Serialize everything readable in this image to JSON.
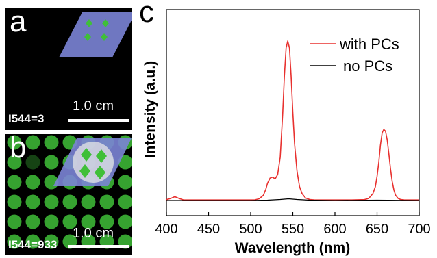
{
  "panel_a": {
    "letter": "a",
    "intensity_label": "I544=3",
    "scale_label": "1.0 cm"
  },
  "panel_b": {
    "letter": "b",
    "intensity_label": "I544=933",
    "scale_label": "1.0 cm"
  },
  "colors": {
    "with_pcs": "#e8312f",
    "no_pcs": "#000000",
    "dot_green": "#3fbf38",
    "parallelogram": "#7b84d6"
  },
  "chart_data": {
    "type": "line",
    "panel_letter": "c",
    "xlabel": "Wavelength (nm)",
    "ylabel": "Intensity (a.u.)",
    "xlim": [
      400,
      700
    ],
    "ylim": [
      0,
      1.0
    ],
    "xticks": [
      400,
      450,
      500,
      550,
      600,
      650,
      700
    ],
    "legend_position": "top-right",
    "series": [
      {
        "name": "with PCs",
        "color": "#e8312f",
        "x": [
          400,
          405,
          410,
          415,
          420,
          430,
          450,
          480,
          505,
          510,
          515,
          518,
          520,
          523,
          526,
          529,
          532,
          535,
          538,
          540,
          542,
          544,
          546,
          548,
          550,
          552,
          555,
          558,
          561,
          565,
          570,
          575,
          580,
          600,
          620,
          635,
          640,
          645,
          648,
          650,
          652,
          654,
          656,
          658,
          660,
          662,
          664,
          666,
          668,
          670,
          672,
          675,
          678,
          682,
          690,
          700
        ],
        "y": [
          0.005,
          0.012,
          0.022,
          0.012,
          0.004,
          0.003,
          0.003,
          0.003,
          0.004,
          0.01,
          0.03,
          0.065,
          0.1,
          0.13,
          0.135,
          0.125,
          0.15,
          0.25,
          0.5,
          0.72,
          0.88,
          0.92,
          0.88,
          0.72,
          0.51,
          0.33,
          0.17,
          0.08,
          0.04,
          0.015,
          0.006,
          0.004,
          0.003,
          0.003,
          0.003,
          0.005,
          0.012,
          0.04,
          0.08,
          0.14,
          0.22,
          0.32,
          0.39,
          0.41,
          0.4,
          0.35,
          0.27,
          0.18,
          0.11,
          0.06,
          0.03,
          0.012,
          0.006,
          0.004,
          0.003,
          0.003
        ]
      },
      {
        "name": "no PCs",
        "color": "#000000",
        "x": [
          400,
          450,
          500,
          520,
          535,
          545,
          555,
          570,
          600,
          650,
          700
        ],
        "y": [
          0.0,
          0.0,
          0.0,
          0.002,
          0.006,
          0.01,
          0.006,
          0.002,
          0.0,
          0.002,
          0.0
        ]
      }
    ]
  }
}
